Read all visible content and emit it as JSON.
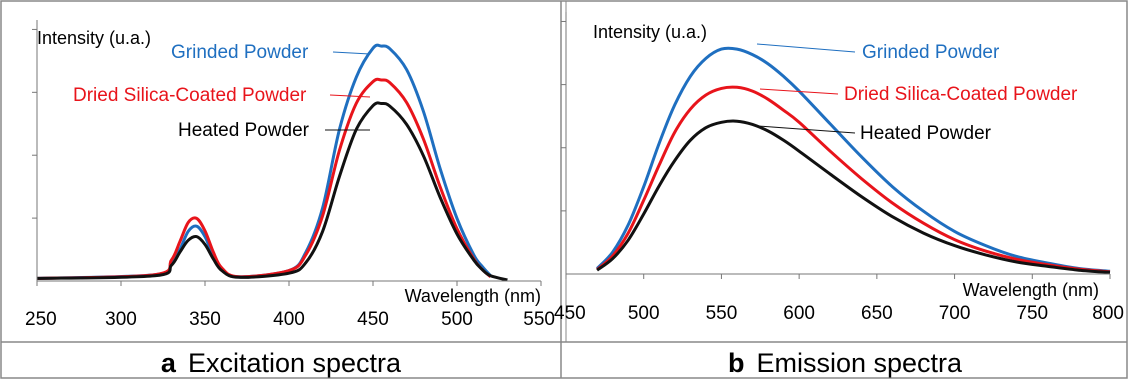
{
  "chart_data": [
    {
      "type": "line",
      "ylabel": "Intensity (u.a.)",
      "xlabel": "Wavelength (nm)",
      "xlim": [
        250,
        550
      ],
      "xticks": [
        250,
        300,
        350,
        400,
        450,
        500,
        550
      ],
      "grid": false,
      "y_tick_marks": 4,
      "caption": {
        "letter": "a",
        "text": "Excitation spectra"
      },
      "series": [
        {
          "name": "Grinded Powder",
          "color": "#1f6fc0",
          "x": [
            250,
            320,
            330,
            335,
            340,
            345,
            350,
            355,
            360,
            370,
            400,
            410,
            420,
            430,
            440,
            450,
            455,
            460,
            470,
            480,
            490,
            500,
            510,
            515,
            520
          ],
          "y": [
            0.05,
            0.12,
            0.35,
            0.6,
            0.95,
            1.05,
            0.85,
            0.48,
            0.22,
            0.08,
            0.2,
            0.55,
            1.4,
            2.9,
            3.9,
            4.46,
            4.5,
            4.45,
            4.05,
            3.25,
            2.15,
            1.2,
            0.5,
            0.28,
            0.1
          ]
        },
        {
          "name": "Dried Silica-Coated Powder",
          "color": "#e8141b",
          "x": [
            250,
            320,
            330,
            335,
            340,
            345,
            350,
            355,
            360,
            370,
            400,
            410,
            420,
            430,
            440,
            450,
            455,
            460,
            470,
            480,
            490,
            500,
            510,
            515,
            520
          ],
          "y": [
            0.05,
            0.12,
            0.4,
            0.75,
            1.12,
            1.2,
            0.96,
            0.55,
            0.25,
            0.08,
            0.2,
            0.5,
            1.25,
            2.5,
            3.4,
            3.82,
            3.85,
            3.8,
            3.42,
            2.72,
            1.8,
            1.0,
            0.42,
            0.22,
            0.08
          ]
        },
        {
          "name": "Heated Powder",
          "color": "#111111",
          "x": [
            250,
            320,
            330,
            335,
            340,
            345,
            350,
            355,
            360,
            370,
            400,
            410,
            420,
            430,
            440,
            450,
            455,
            460,
            470,
            480,
            490,
            500,
            510,
            515,
            520,
            530
          ],
          "y": [
            0.05,
            0.1,
            0.3,
            0.55,
            0.78,
            0.85,
            0.7,
            0.42,
            0.2,
            0.07,
            0.15,
            0.35,
            0.95,
            2.0,
            2.9,
            3.36,
            3.4,
            3.35,
            3.0,
            2.4,
            1.6,
            0.9,
            0.4,
            0.22,
            0.1,
            0.02
          ]
        }
      ]
    },
    {
      "type": "line",
      "ylabel": "Intensity (u.a.)",
      "xlabel": "Wavelength (nm)",
      "xlim": [
        450,
        800
      ],
      "xticks": [
        450,
        500,
        550,
        600,
        650,
        700,
        750,
        800
      ],
      "grid": false,
      "y_tick_marks": 4,
      "caption": {
        "letter": "b",
        "text": "Emission spectra"
      },
      "series": [
        {
          "name": "Grinded Powder",
          "color": "#1f6fc0",
          "x": [
            470,
            480,
            490,
            500,
            510,
            520,
            530,
            540,
            550,
            560,
            570,
            580,
            590,
            600,
            620,
            640,
            660,
            680,
            700,
            720,
            740,
            760,
            780,
            800
          ],
          "y": [
            0.1,
            0.4,
            0.9,
            1.6,
            2.4,
            3.1,
            3.62,
            3.95,
            4.12,
            4.12,
            4.02,
            3.85,
            3.62,
            3.35,
            2.75,
            2.15,
            1.6,
            1.15,
            0.78,
            0.52,
            0.32,
            0.2,
            0.1,
            0.05
          ]
        },
        {
          "name": "Dried Silica-Coated Powder",
          "color": "#e8141b",
          "x": [
            470,
            480,
            490,
            500,
            510,
            520,
            530,
            540,
            550,
            560,
            570,
            580,
            590,
            600,
            620,
            640,
            660,
            680,
            700,
            720,
            740,
            760,
            780,
            800
          ],
          "y": [
            0.08,
            0.33,
            0.75,
            1.35,
            2.0,
            2.6,
            3.02,
            3.28,
            3.4,
            3.42,
            3.35,
            3.2,
            3.0,
            2.78,
            2.25,
            1.75,
            1.3,
            0.93,
            0.63,
            0.42,
            0.27,
            0.17,
            0.09,
            0.04
          ]
        },
        {
          "name": "Heated Powder",
          "color": "#111111",
          "x": [
            470,
            480,
            490,
            500,
            510,
            520,
            530,
            540,
            550,
            560,
            570,
            580,
            590,
            600,
            620,
            640,
            660,
            680,
            700,
            720,
            740,
            760,
            780,
            800
          ],
          "y": [
            0.07,
            0.28,
            0.62,
            1.1,
            1.62,
            2.08,
            2.45,
            2.68,
            2.78,
            2.8,
            2.74,
            2.62,
            2.45,
            2.25,
            1.83,
            1.42,
            1.05,
            0.75,
            0.52,
            0.35,
            0.22,
            0.14,
            0.07,
            0.03
          ]
        }
      ]
    }
  ]
}
